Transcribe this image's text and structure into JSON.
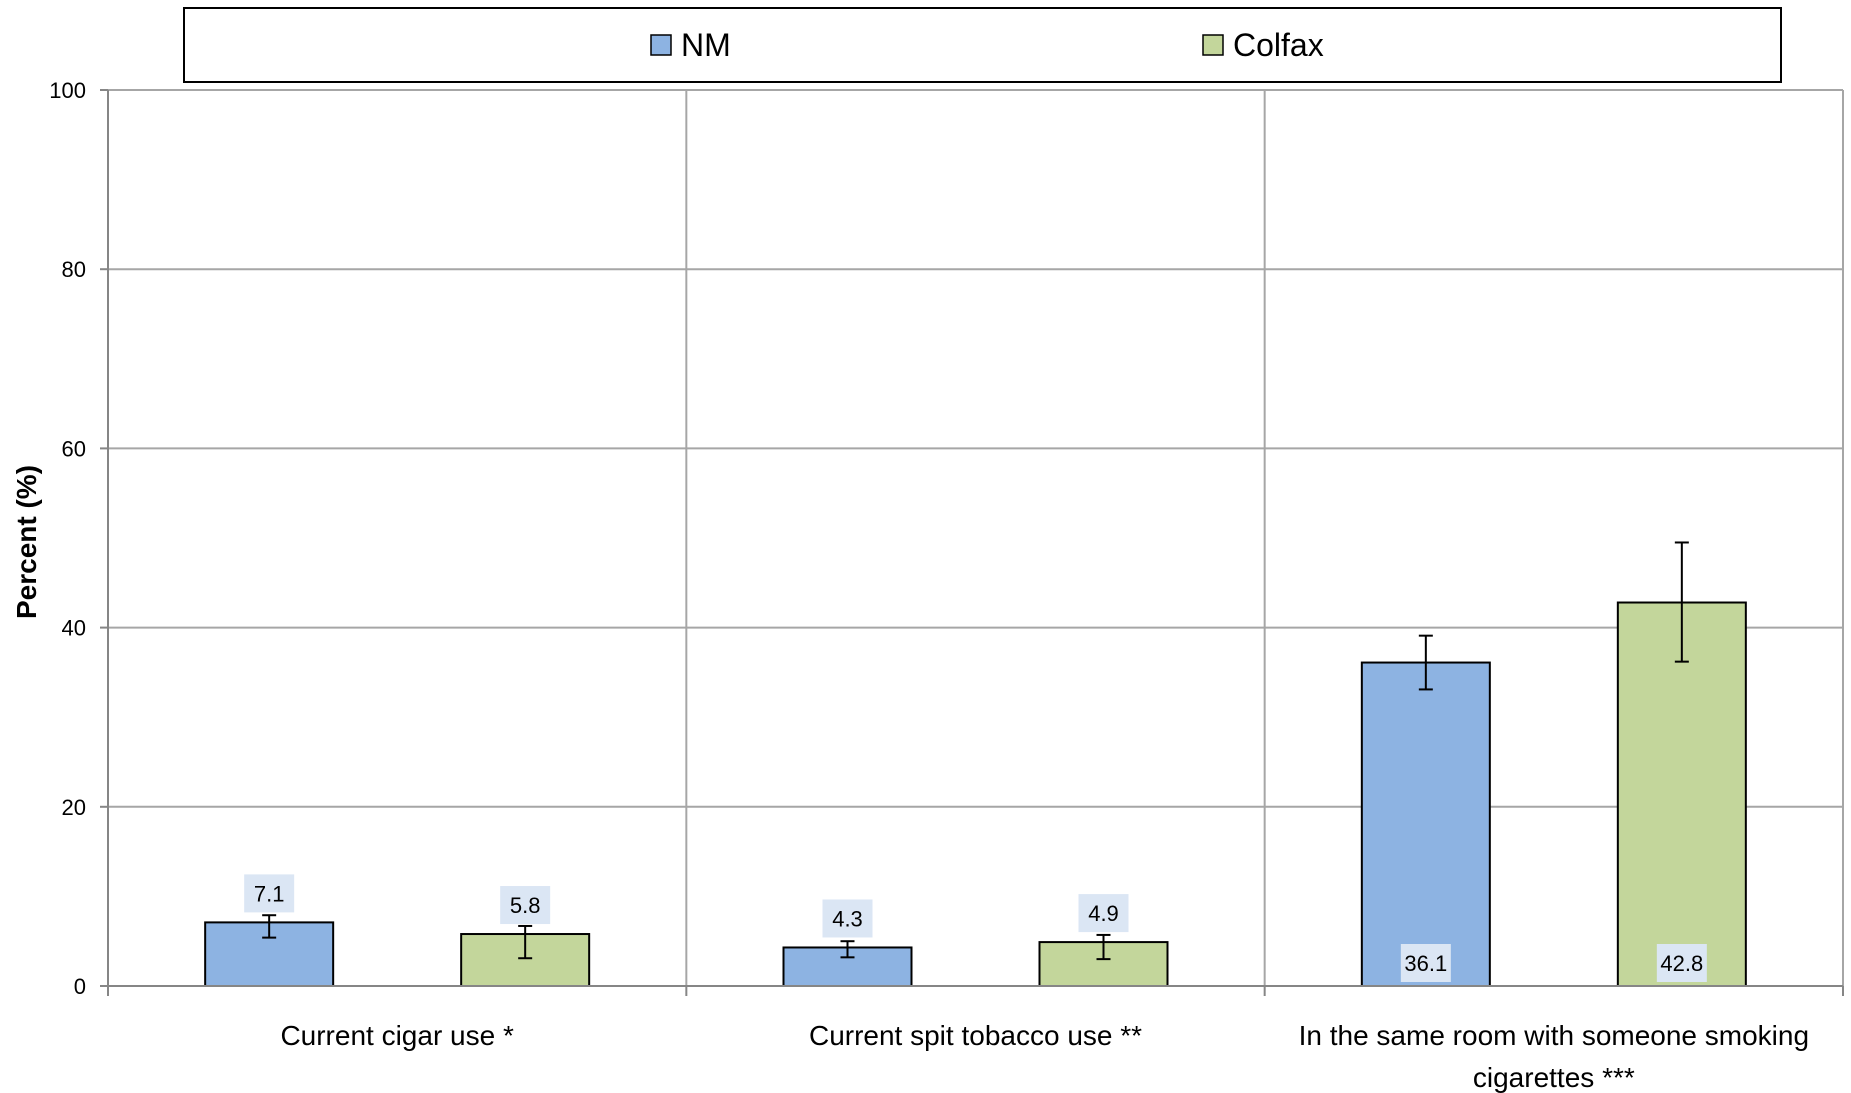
{
  "chart_data": {
    "type": "bar",
    "categories": [
      [
        "Current cigar use *"
      ],
      [
        "Current spit tobacco use **"
      ],
      [
        "In the same room with someone smoking",
        "cigarettes ***"
      ]
    ],
    "series": [
      {
        "name": "NM",
        "color": "#8DB3E2",
        "values": [
          7.1,
          4.3,
          36.1
        ],
        "error_low": [
          5.4,
          3.2,
          33.1
        ],
        "error_high": [
          7.9,
          5.0,
          39.1
        ],
        "labels": [
          "7.1",
          "4.3",
          "36.1"
        ]
      },
      {
        "name": "Colfax",
        "color": "#C3D69B",
        "values": [
          5.8,
          4.9,
          42.8
        ],
        "error_low": [
          3.1,
          3.0,
          36.2
        ],
        "error_high": [
          6.7,
          5.7,
          49.5
        ],
        "labels": [
          "5.8",
          "4.9",
          "42.8"
        ]
      }
    ],
    "ylabel": "Percent (%)",
    "xlabel": "",
    "ylim": [
      0,
      100
    ],
    "yticks": [
      0,
      20,
      40,
      60,
      80,
      100
    ],
    "ytick_labels": [
      "0",
      "20",
      "40",
      "60",
      "80",
      "100"
    ],
    "grid": true,
    "legend_position": "top",
    "gridline_color": "#A6A6A6"
  }
}
